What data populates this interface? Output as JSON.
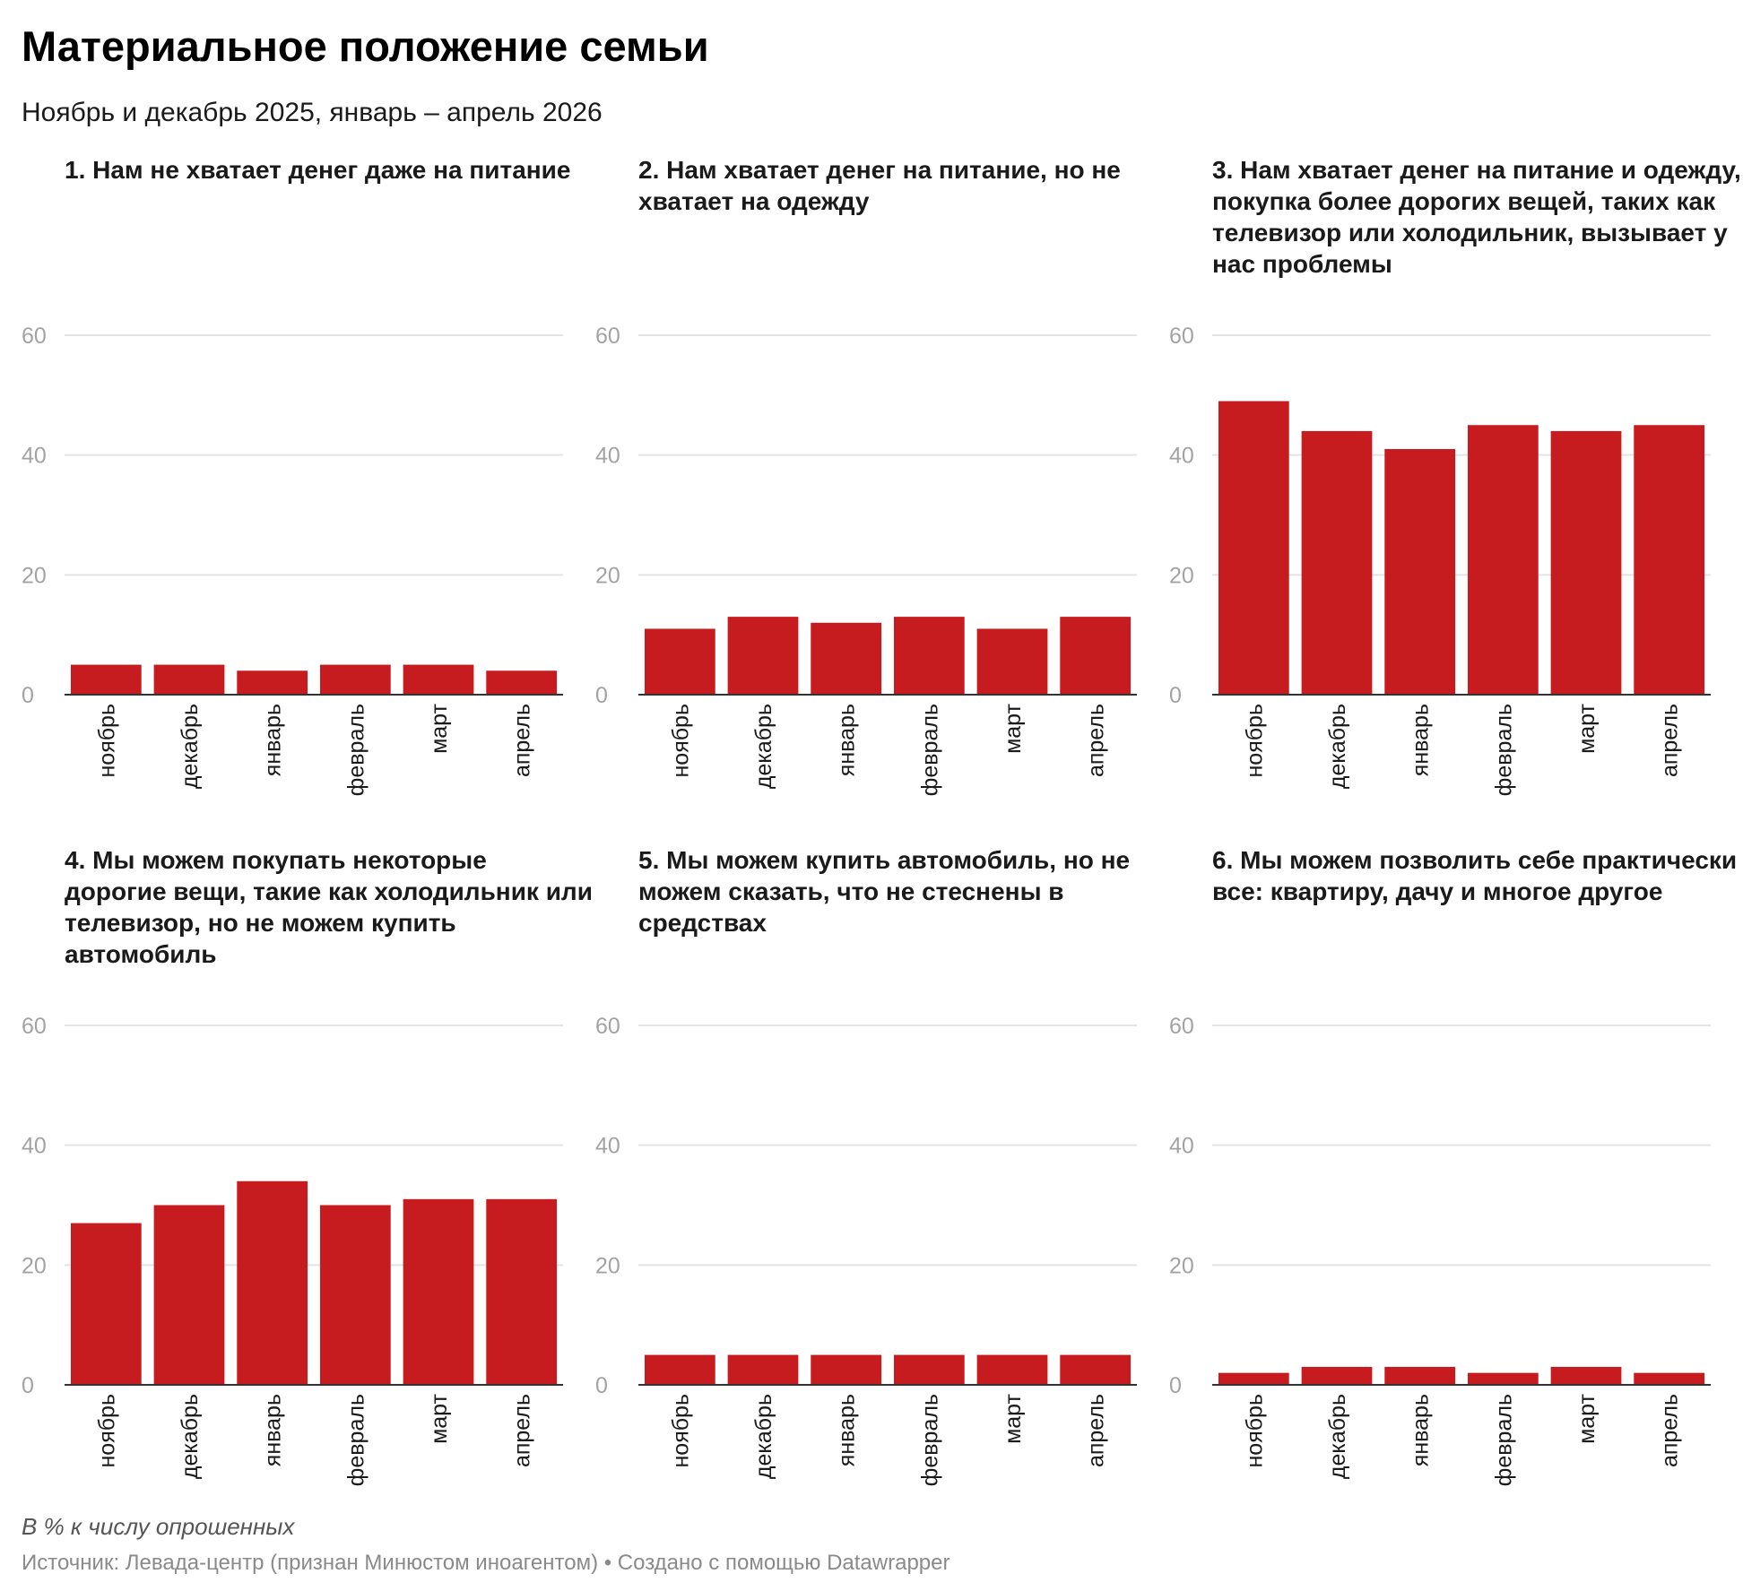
{
  "title": "Материальное положение семьи",
  "subtitle": "Ноябрь и декабрь 2025, январь – апрель 2026",
  "note": "В % к числу опрошенных",
  "source": "Источник: Левада-центр (признан Минюстом иноагентом) • Создано с помощью Datawrapper",
  "colors": {
    "bar": "#c71c1f",
    "grid": "#e3e3e3",
    "axis": "#333333"
  },
  "chart_data": [
    {
      "type": "bar",
      "title": "1. Нам не хватает денег даже на питание",
      "categories": [
        "ноябрь",
        "декабрь",
        "январь",
        "февраль",
        "март",
        "апрель"
      ],
      "values": [
        5,
        5,
        4,
        5,
        5,
        4
      ],
      "yticks": [
        0,
        20,
        40,
        60
      ],
      "ylim": [
        0,
        60
      ],
      "grid": true
    },
    {
      "type": "bar",
      "title": "2. Нам хватает денег на питание, но не хватает на одежду",
      "categories": [
        "ноябрь",
        "декабрь",
        "январь",
        "февраль",
        "март",
        "апрель"
      ],
      "values": [
        11,
        13,
        12,
        13,
        11,
        13
      ],
      "yticks": [
        0,
        20,
        40,
        60
      ],
      "ylim": [
        0,
        60
      ],
      "grid": true
    },
    {
      "type": "bar",
      "title": "3. Нам хватает денег на питание и одежду, покупка более дорогих вещей, таких как телевизор или холодильник, вызывает у нас проблемы",
      "categories": [
        "ноябрь",
        "декабрь",
        "январь",
        "февраль",
        "март",
        "апрель"
      ],
      "values": [
        49,
        44,
        41,
        45,
        44,
        45
      ],
      "yticks": [
        0,
        20,
        40,
        60
      ],
      "ylim": [
        0,
        60
      ],
      "grid": true
    },
    {
      "type": "bar",
      "title": "4. Мы можем покупать некоторые дорогие вещи, такие как холодильник или телевизор, но не можем купить автомобиль",
      "categories": [
        "ноябрь",
        "декабрь",
        "январь",
        "февраль",
        "март",
        "апрель"
      ],
      "values": [
        27,
        30,
        34,
        30,
        31,
        31
      ],
      "yticks": [
        0,
        20,
        40,
        60
      ],
      "ylim": [
        0,
        60
      ],
      "grid": true
    },
    {
      "type": "bar",
      "title": "5. Мы можем купить автомобиль, но не можем сказать, что не стеснены в средствах",
      "categories": [
        "ноябрь",
        "декабрь",
        "январь",
        "февраль",
        "март",
        "апрель"
      ],
      "values": [
        5,
        5,
        5,
        5,
        5,
        5
      ],
      "yticks": [
        0,
        20,
        40,
        60
      ],
      "ylim": [
        0,
        60
      ],
      "grid": true
    },
    {
      "type": "bar",
      "title": "6. Мы можем позволить себе практически все: квартиру, дачу и многое другое",
      "categories": [
        "ноябрь",
        "декабрь",
        "январь",
        "февраль",
        "март",
        "апрель"
      ],
      "values": [
        2,
        3,
        3,
        2,
        3,
        2
      ],
      "yticks": [
        0,
        20,
        40,
        60
      ],
      "ylim": [
        0,
        60
      ],
      "grid": true
    }
  ]
}
